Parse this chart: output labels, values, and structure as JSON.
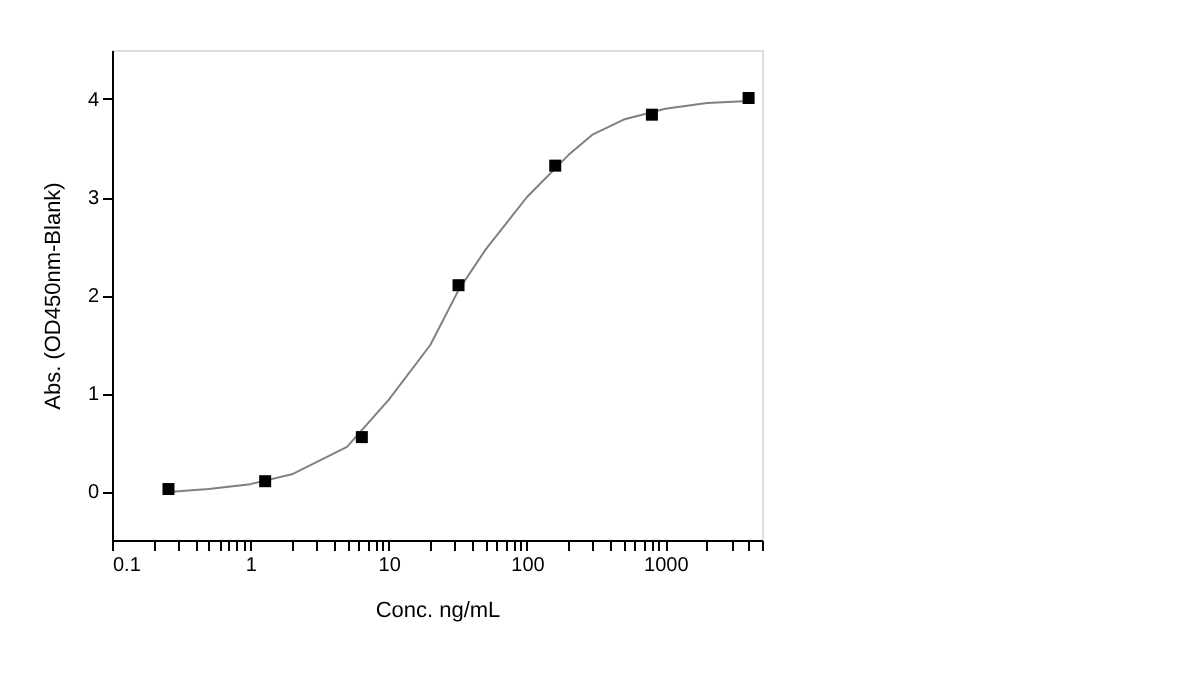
{
  "chart_data": {
    "type": "scatter",
    "xlabel": "Conc. ng/mL",
    "ylabel": "Abs. (OD450nm-Blank)",
    "log": "x",
    "grid": false,
    "marker": "square",
    "xlim": [
      0.1,
      5000
    ],
    "ylim": [
      -0.5,
      4.5
    ],
    "yticks": [
      0,
      1,
      2,
      3,
      4
    ],
    "xticks": [
      0.1,
      {
        "value": 0.2,
        "label": null
      },
      {
        "value": 0.3,
        "label": null
      },
      {
        "value": 0.4,
        "label": null
      },
      {
        "value": 0.5,
        "label": null
      },
      {
        "value": 0.6,
        "label": null
      },
      {
        "value": 0.7,
        "label": null
      },
      {
        "value": 0.8,
        "label": null
      },
      {
        "value": 0.9,
        "label": null
      },
      1,
      {
        "value": 2,
        "label": null
      },
      {
        "value": 3,
        "label": null
      },
      {
        "value": 4,
        "label": null
      },
      {
        "value": 5,
        "label": null
      },
      {
        "value": 6,
        "label": null
      },
      {
        "value": 7,
        "label": null
      },
      {
        "value": 8,
        "label": null
      },
      {
        "value": 9,
        "label": null
      },
      10,
      {
        "value": 20,
        "label": null
      },
      {
        "value": 30,
        "label": null
      },
      {
        "value": 40,
        "label": null
      },
      {
        "value": 50,
        "label": null
      },
      {
        "value": 60,
        "label": null
      },
      {
        "value": 70,
        "label": null
      },
      {
        "value": 80,
        "label": null
      },
      {
        "value": 90,
        "label": null
      },
      100,
      {
        "value": 200,
        "label": null
      },
      {
        "value": 300,
        "label": null
      },
      {
        "value": 400,
        "label": null
      },
      {
        "value": 500,
        "label": null
      },
      {
        "value": 600,
        "label": null
      },
      {
        "value": 700,
        "label": null
      },
      {
        "value": 800,
        "label": null
      },
      {
        "value": 900,
        "label": null
      },
      1000,
      {
        "value": 2000,
        "label": null
      },
      {
        "value": 3000,
        "label": null
      },
      {
        "value": 4000,
        "label": null
      },
      {
        "value": 5000,
        "label": null
      }
    ],
    "series": [
      {
        "type": "line",
        "color": "#808080",
        "marker": "none",
        "line_style": "solid",
        "x": [
          0.256,
          0.5,
          1,
          2,
          5,
          10,
          20,
          32,
          50,
          100,
          200,
          300,
          500,
          1000,
          2000,
          4000
        ],
        "values": [
          -0.01,
          0.02,
          0.07,
          0.17,
          0.45,
          0.93,
          1.49,
          2.05,
          2.46,
          3.0,
          3.43,
          3.64,
          3.79,
          3.9,
          3.96,
          3.98
        ]
      },
      {
        "color": "#000000",
        "x": [
          0.256,
          1.28,
          6.4,
          32,
          160,
          800,
          4000
        ],
        "values": [
          0.02,
          0.1,
          0.55,
          2.1,
          3.32,
          3.84,
          4.01
        ]
      }
    ]
  }
}
